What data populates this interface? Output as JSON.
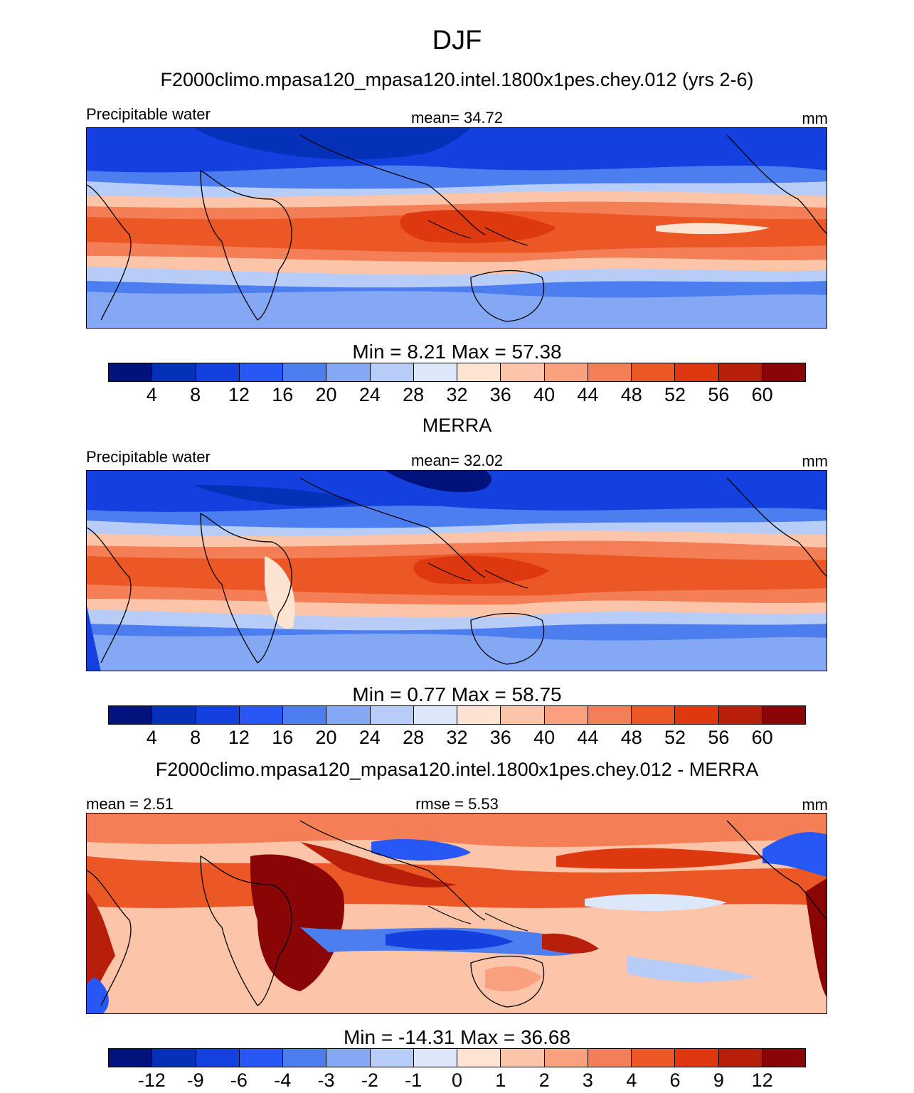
{
  "title": "DJF",
  "palettes": {
    "abs": [
      "#00137d",
      "#0530b8",
      "#1440e0",
      "#2757f5",
      "#4d7ef0",
      "#85a8f5",
      "#b7cdf8",
      "#dde7fa",
      "#fde3d1",
      "#fcc5aa",
      "#f9a07e",
      "#f47f56",
      "#ec5726",
      "#dd3810",
      "#b81f0a",
      "#8a0505"
    ],
    "diff": [
      "#00137d",
      "#0530b8",
      "#1440e0",
      "#2757f5",
      "#4d7ef0",
      "#85a8f5",
      "#b7cdf8",
      "#dde7fa",
      "#fde3d1",
      "#fcc5aa",
      "#f9a07e",
      "#f47f56",
      "#ec5726",
      "#dd3810",
      "#b81f0a",
      "#8a0505"
    ]
  },
  "panels": [
    {
      "title": "F2000climo.mpasa120_mpasa120.intel.1800x1pes.chey.012 (yrs 2-6)",
      "left_label": "Precipitable water",
      "mid_label": "mean=  34.72",
      "right_label": "mm",
      "minmax": "Min =   8.21 Max =  57.38",
      "ticks": [
        "4",
        "8",
        "12",
        "16",
        "20",
        "24",
        "28",
        "32",
        "36",
        "40",
        "44",
        "48",
        "52",
        "56",
        "60"
      ],
      "palette": "abs"
    },
    {
      "title": "MERRA",
      "left_label": "Precipitable water",
      "mid_label": "mean=  32.02",
      "right_label": "mm",
      "minmax": "Min =   0.77 Max =  58.75",
      "ticks": [
        "4",
        "8",
        "12",
        "16",
        "20",
        "24",
        "28",
        "32",
        "36",
        "40",
        "44",
        "48",
        "52",
        "56",
        "60"
      ],
      "palette": "abs"
    },
    {
      "title": "F2000climo.mpasa120_mpasa120.intel.1800x1pes.chey.012 - MERRA",
      "left_label": "mean =   2.51",
      "mid_label": "rmse =   5.53",
      "right_label": "mm",
      "minmax": "Min = -14.31 Max =  36.68",
      "ticks": [
        "-12",
        "-9",
        "-6",
        "-4",
        "-3",
        "-2",
        "-1",
        "0",
        "1",
        "2",
        "3",
        "4",
        "6",
        "9",
        "12"
      ],
      "palette": "diff"
    }
  ]
}
